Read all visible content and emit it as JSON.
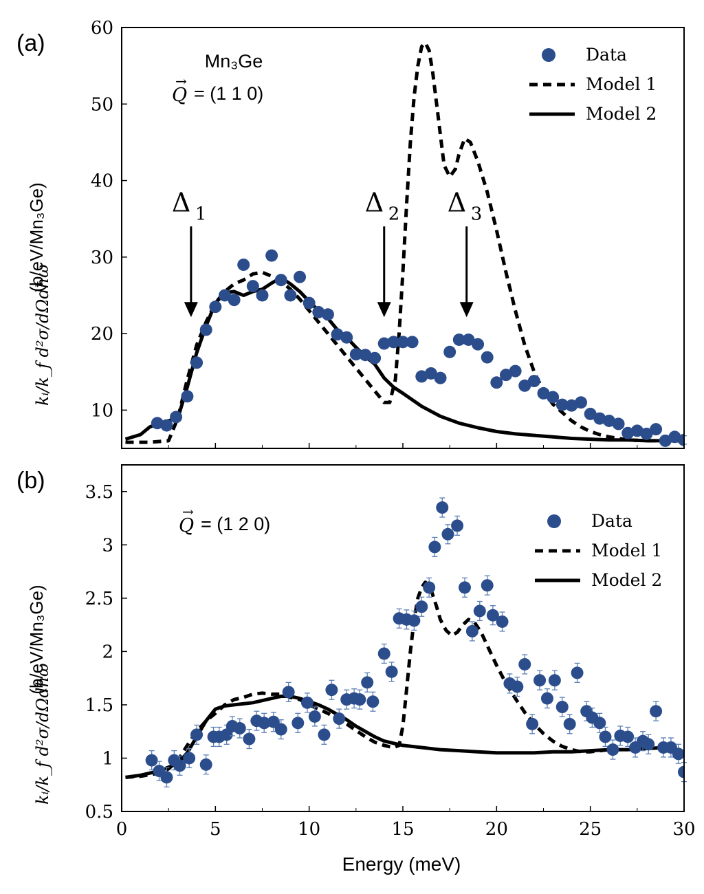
{
  "figure": {
    "xlabel": "Energy (meV)",
    "ylabel_unit": "(b/eV/Mn₃Ge)",
    "ylabel_prefactor": "kᵢ/k_f d²σ/dΩdħω",
    "x_ticks": [
      "0",
      "5",
      "10",
      "15",
      "20",
      "25",
      "30"
    ]
  },
  "chart_data": [
    {
      "type": "scatter",
      "panel_label": "(a)",
      "annotation_compound": "Mn₃Ge",
      "annotation_q": "Q = (1 1 0)",
      "q_symbol": "Q",
      "q_rest": "= (1 1 0)",
      "xlim": [
        0,
        30
      ],
      "ylim": [
        5,
        60
      ],
      "y_ticks": [
        "10",
        "20",
        "30",
        "40",
        "50",
        "60"
      ],
      "legend": [
        "Data",
        "Model 1",
        "Model 2"
      ],
      "legend_position": "top-right",
      "arrows": [
        {
          "label": "Δ",
          "sub": "1",
          "x": 3.7,
          "y_tip": 22.5,
          "y_tail": 34
        },
        {
          "label": "Δ",
          "sub": "2",
          "x": 14.0,
          "y_tip": 22.5,
          "y_tail": 34
        },
        {
          "label": "Δ",
          "sub": "3",
          "x": 18.4,
          "y_tip": 22.5,
          "y_tail": 34
        }
      ],
      "series": [
        {
          "name": "Data",
          "color": "#2b4d8c",
          "x": [
            1.9,
            2.4,
            2.9,
            3.5,
            4.0,
            4.5,
            5.0,
            5.5,
            6.0,
            6.5,
            7.0,
            7.5,
            8.0,
            8.5,
            9.0,
            9.5,
            10.0,
            10.5,
            11.0,
            11.5,
            12.0,
            12.5,
            13.0,
            13.5,
            14.0,
            14.5,
            15.0,
            15.5,
            16.0,
            16.5,
            17.0,
            17.5,
            18.0,
            18.5,
            19.0,
            19.5,
            20.0,
            20.5,
            21.0,
            21.5,
            22.0,
            22.5,
            23.0,
            23.5,
            24.0,
            24.5,
            25.0,
            25.5,
            26.0,
            26.5,
            27.0,
            27.5,
            28.0,
            28.5,
            29.0,
            29.5,
            30.0
          ],
          "y": [
            8.3,
            8.0,
            9.1,
            11.8,
            16.2,
            20.5,
            23.5,
            25.0,
            24.4,
            29.0,
            26.2,
            25.0,
            30.2,
            27.0,
            25.0,
            27.4,
            24.0,
            22.8,
            22.5,
            19.9,
            19.5,
            17.3,
            17.2,
            16.8,
            18.7,
            18.9,
            18.9,
            18.9,
            14.4,
            14.8,
            14.2,
            17.6,
            19.2,
            19.2,
            18.6,
            16.9,
            13.6,
            14.6,
            15.1,
            13.2,
            13.8,
            12.2,
            11.7,
            10.7,
            10.6,
            11.0,
            9.5,
            8.9,
            8.6,
            8.2,
            7.0,
            7.3,
            6.9,
            7.5,
            6.0,
            6.5,
            6.1
          ]
        },
        {
          "name": "Model 1",
          "style": "dashed",
          "x": [
            0.2,
            1.5,
            2.5,
            3.0,
            3.5,
            4.0,
            4.5,
            5.0,
            5.5,
            6.0,
            6.5,
            7.0,
            7.5,
            8.0,
            8.5,
            9.0,
            9.5,
            10.0,
            10.5,
            11.0,
            11.5,
            12.0,
            12.5,
            13.0,
            13.5,
            14.0,
            14.3,
            14.6,
            14.8,
            15.0,
            15.2,
            15.4,
            15.6,
            15.8,
            16.0,
            16.2,
            16.4,
            16.6,
            16.8,
            17.0,
            17.2,
            17.5,
            17.8,
            18.0,
            18.3,
            18.6,
            19.0,
            19.5,
            20.0,
            20.5,
            21.0,
            21.5,
            22.0,
            22.5,
            23.0,
            23.5,
            24.0,
            24.5,
            25.0,
            25.5,
            26.0,
            26.5,
            27.0,
            28.0,
            29.0,
            30.0
          ],
          "y": [
            5.8,
            5.8,
            6.0,
            9.0,
            14.0,
            18.5,
            21.5,
            24.0,
            25.5,
            26.5,
            27.0,
            27.8,
            28.0,
            27.5,
            26.8,
            25.8,
            24.5,
            23.0,
            21.5,
            20.0,
            18.5,
            17.0,
            15.5,
            14.0,
            12.5,
            11.0,
            11.0,
            14.0,
            20.0,
            28.0,
            37.0,
            45.0,
            51.0,
            55.0,
            57.5,
            58.0,
            57.0,
            54.0,
            50.0,
            46.0,
            42.0,
            40.5,
            41.5,
            43.5,
            45.5,
            45.0,
            42.5,
            38.5,
            33.5,
            28.0,
            23.0,
            18.5,
            15.0,
            12.5,
            10.8,
            9.7,
            8.6,
            7.8,
            7.2,
            6.8,
            6.5,
            6.3,
            6.1,
            6.0,
            6.0,
            6.0
          ]
        },
        {
          "name": "Model 2",
          "style": "solid",
          "x": [
            0.2,
            1.0,
            1.5,
            2.0,
            2.5,
            3.0,
            3.5,
            4.0,
            4.5,
            5.0,
            5.5,
            6.0,
            6.5,
            7.0,
            7.5,
            8.0,
            8.5,
            9.0,
            9.5,
            10.0,
            10.5,
            11.0,
            11.5,
            12.0,
            12.5,
            13.0,
            13.5,
            14.0,
            14.5,
            15.0,
            16.0,
            17.0,
            18.0,
            19.0,
            20.0,
            21.0,
            22.0,
            23.0,
            24.0,
            25.0,
            26.0,
            27.0,
            28.0,
            29.0,
            30.0
          ],
          "y": [
            6.2,
            6.8,
            7.8,
            8.3,
            8.6,
            9.0,
            13.0,
            17.5,
            21.0,
            24.0,
            25.3,
            25.5,
            25.0,
            25.5,
            25.8,
            26.6,
            27.3,
            26.5,
            25.5,
            24.2,
            23.0,
            22.0,
            20.5,
            19.5,
            18.2,
            17.0,
            16.0,
            14.2,
            13.0,
            12.2,
            10.5,
            9.2,
            8.3,
            7.7,
            7.2,
            6.9,
            6.7,
            6.5,
            6.3,
            6.2,
            6.1,
            6.1,
            6.0,
            6.0,
            6.0
          ]
        }
      ]
    },
    {
      "type": "scatter",
      "panel_label": "(b)",
      "annotation_q": "Q = (1 2 0)",
      "q_symbol": "Q",
      "q_rest": "= (1 2 0)",
      "xlim": [
        0,
        30
      ],
      "ylim": [
        0.5,
        3.75
      ],
      "y_ticks": [
        "0.5",
        "1",
        "1.5",
        "2",
        "2.5",
        "3",
        "3.5"
      ],
      "legend": [
        "Data",
        "Model 1",
        "Model 2"
      ],
      "legend_position": "middle-right",
      "series": [
        {
          "name": "Data",
          "color": "#2b4d8c",
          "x": [
            1.6,
            2.0,
            2.4,
            2.8,
            3.1,
            3.6,
            4.0,
            4.5,
            4.9,
            5.2,
            5.6,
            5.9,
            6.3,
            6.8,
            7.2,
            7.6,
            8.1,
            8.5,
            8.9,
            9.4,
            9.9,
            10.3,
            10.8,
            11.2,
            11.6,
            12.0,
            12.4,
            12.7,
            13.1,
            13.4,
            14.0,
            14.4,
            14.8,
            15.2,
            15.6,
            16.0,
            16.4,
            16.7,
            17.1,
            17.4,
            17.9,
            18.3,
            18.7,
            19.1,
            19.5,
            19.8,
            20.3,
            20.7,
            21.1,
            21.5,
            21.9,
            22.3,
            22.7,
            23.1,
            23.5,
            23.9,
            24.3,
            24.8,
            25.1,
            25.5,
            25.8,
            26.2,
            26.6,
            27.0,
            27.4,
            27.8,
            28.1,
            28.5,
            28.9,
            29.3,
            29.7,
            30.0
          ],
          "y": [
            0.98,
            0.88,
            0.82,
            0.98,
            0.93,
            1.0,
            1.22,
            0.94,
            1.2,
            1.2,
            1.22,
            1.3,
            1.28,
            1.18,
            1.35,
            1.33,
            1.34,
            1.27,
            1.62,
            1.33,
            1.52,
            1.39,
            1.22,
            1.64,
            1.37,
            1.55,
            1.56,
            1.55,
            1.71,
            1.53,
            1.98,
            1.81,
            2.31,
            2.3,
            2.29,
            2.42,
            2.6,
            2.98,
            3.35,
            3.1,
            3.18,
            2.6,
            2.19,
            2.38,
            2.62,
            2.34,
            2.28,
            1.7,
            1.67,
            1.88,
            1.32,
            1.73,
            1.56,
            1.73,
            1.48,
            1.32,
            1.8,
            1.44,
            1.38,
            1.33,
            1.2,
            1.08,
            1.21,
            1.2,
            1.1,
            1.16,
            1.13,
            1.44,
            1.1,
            1.1,
            1.04,
            0.87
          ]
        },
        {
          "name": "Model 1",
          "style": "dashed",
          "x": [
            0.2,
            1.0,
            2.0,
            2.5,
            3.0,
            3.5,
            4.0,
            4.5,
            5.0,
            5.5,
            6.0,
            6.5,
            7.0,
            7.5,
            8.0,
            8.5,
            9.0,
            9.5,
            10.0,
            10.5,
            11.0,
            11.5,
            12.0,
            12.5,
            13.0,
            13.5,
            14.0,
            14.5,
            14.8,
            15.0,
            15.2,
            15.4,
            15.6,
            15.8,
            16.0,
            16.2,
            16.5,
            16.8,
            17.0,
            17.3,
            17.6,
            17.9,
            18.2,
            18.5,
            18.8,
            19.2,
            19.6,
            20.0,
            20.5,
            21.0,
            21.5,
            22.0,
            22.5,
            23.0,
            23.5,
            24.0,
            24.5,
            25.0,
            25.5,
            26.0
          ],
          "y": [
            0.82,
            0.83,
            0.86,
            0.9,
            0.98,
            1.12,
            1.25,
            1.35,
            1.42,
            1.5,
            1.55,
            1.57,
            1.6,
            1.61,
            1.6,
            1.6,
            1.57,
            1.55,
            1.5,
            1.46,
            1.42,
            1.37,
            1.32,
            1.26,
            1.2,
            1.15,
            1.12,
            1.1,
            1.12,
            1.3,
            1.65,
            2.0,
            2.3,
            2.5,
            2.6,
            2.65,
            2.58,
            2.42,
            2.3,
            2.2,
            2.15,
            2.18,
            2.25,
            2.3,
            2.28,
            2.17,
            2.02,
            1.87,
            1.7,
            1.56,
            1.43,
            1.32,
            1.23,
            1.16,
            1.11,
            1.08,
            1.06,
            1.06,
            1.07,
            1.08
          ]
        },
        {
          "name": "Model 2",
          "style": "solid",
          "x": [
            0.2,
            1.0,
            2.0,
            3.0,
            3.5,
            4.0,
            4.5,
            5.0,
            5.5,
            6.0,
            6.5,
            7.0,
            7.5,
            8.0,
            8.5,
            9.0,
            9.5,
            10.0,
            10.5,
            11.0,
            11.5,
            12.0,
            12.5,
            13.0,
            13.5,
            14.0,
            14.5,
            15.0,
            16.0,
            17.0,
            18.0,
            19.0,
            20.0,
            21.0,
            22.0,
            23.0,
            24.0,
            25.0,
            26.0,
            27.0,
            28.0,
            29.0,
            29.5
          ],
          "y": [
            0.82,
            0.84,
            0.88,
            0.95,
            1.05,
            1.2,
            1.35,
            1.46,
            1.49,
            1.5,
            1.51,
            1.52,
            1.54,
            1.56,
            1.58,
            1.58,
            1.56,
            1.53,
            1.5,
            1.46,
            1.41,
            1.36,
            1.3,
            1.25,
            1.2,
            1.16,
            1.14,
            1.12,
            1.1,
            1.08,
            1.07,
            1.06,
            1.05,
            1.05,
            1.05,
            1.06,
            1.06,
            1.07,
            1.08,
            1.08,
            1.09,
            1.1,
            1.1
          ]
        }
      ]
    }
  ]
}
